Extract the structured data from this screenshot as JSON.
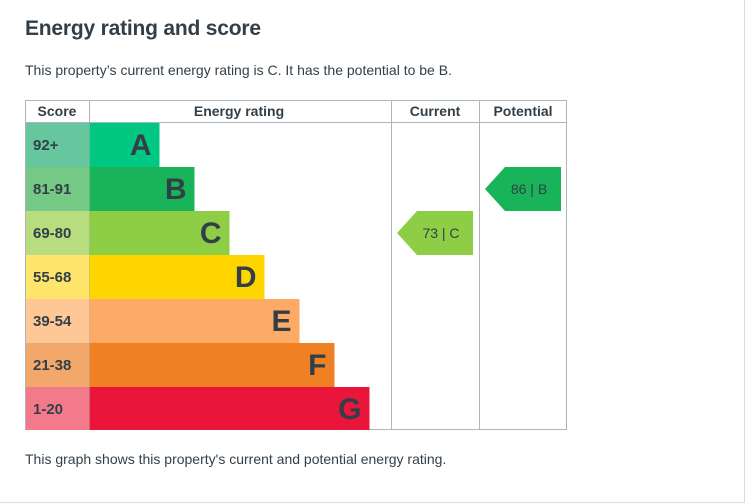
{
  "title": "Energy rating and score",
  "intro": "This property’s current energy rating is C. It has the potential to be B.",
  "footnote": "This graph shows this property's current and potential energy rating.",
  "chart_data": {
    "type": "bar",
    "headers": {
      "score": "Score",
      "rating": "Energy rating",
      "current": "Current",
      "potential": "Potential"
    },
    "bands": [
      {
        "letter": "A",
        "score": "92+",
        "score_color": "#66c79f",
        "bar_color": "#00c781"
      },
      {
        "letter": "B",
        "score": "81-91",
        "score_color": "#74c984",
        "bar_color": "#19b459"
      },
      {
        "letter": "C",
        "score": "69-80",
        "score_color": "#b8dd7f",
        "bar_color": "#8dce46"
      },
      {
        "letter": "D",
        "score": "55-68",
        "score_color": "#ffe56b",
        "bar_color": "#ffd500"
      },
      {
        "letter": "E",
        "score": "39-54",
        "score_color": "#fdc796",
        "bar_color": "#fcaa65"
      },
      {
        "letter": "F",
        "score": "21-38",
        "score_color": "#f2a86b",
        "bar_color": "#ef8023"
      },
      {
        "letter": "G",
        "score": "1-20",
        "score_color": "#f27a8b",
        "bar_color": "#e9153b"
      }
    ],
    "current": {
      "value": 73,
      "band": "C",
      "label": "73 | C",
      "color": "#8dce46"
    },
    "potential": {
      "value": 86,
      "band": "B",
      "label": "86 | B",
      "color": "#19b459"
    }
  }
}
